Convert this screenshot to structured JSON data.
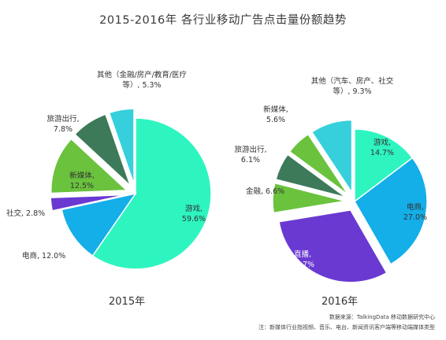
{
  "title": "2015-2016年 各行业移动广告点击量份额趋势",
  "notes": {
    "source": "数据来源：TalkingData 移动数据研究中心",
    "remark": "注：新媒体行业指视频、音乐、电台、新闻资讯客户端等移动端媒体类型"
  },
  "colors": {
    "游戏": "#2ef5c0",
    "电商": "#14aee8",
    "社交": "#6a39d2",
    "新媒体": "#6ac23d",
    "旅游出行": "#3d7a5a",
    "其他": "#35d0dc",
    "金融": "#6ac23d",
    "直播": "#6a39d2"
  },
  "chart_data": [
    {
      "type": "pie",
      "title": "2015年",
      "slices": [
        {
          "category": "游戏",
          "value": 59.6,
          "label_lines": [
            "游戏,",
            "59.6%"
          ],
          "exploded": false
        },
        {
          "category": "电商",
          "value": 12.0,
          "label_lines": [
            "电商, 12.0%"
          ],
          "exploded": false
        },
        {
          "category": "社交",
          "value": 2.8,
          "label_lines": [
            "社交, 2.8%"
          ],
          "exploded": true
        },
        {
          "category": "新媒体",
          "value": 12.5,
          "label_lines": [
            "新媒体,",
            "12.5%"
          ],
          "exploded": true
        },
        {
          "category": "旅游出行",
          "value": 7.8,
          "label_lines": [
            "旅游出行,",
            "7.8%"
          ],
          "exploded": true
        },
        {
          "category": "其他",
          "value": 5.3,
          "label_lines": [
            "其他（金融/房产/教育/医疗",
            "等）, 5.3%"
          ],
          "exploded": true
        }
      ]
    },
    {
      "type": "pie",
      "title": "2016年",
      "slices": [
        {
          "category": "游戏",
          "value": 14.7,
          "label_lines": [
            "游戏,",
            "14.7%"
          ],
          "exploded": false
        },
        {
          "category": "电商",
          "value": 27.0,
          "label_lines": [
            "电商,",
            "27.0%"
          ],
          "exploded": false
        },
        {
          "category": "直播",
          "value": 30.7,
          "label_lines": [
            "直播,",
            "30.7%"
          ],
          "exploded": true
        },
        {
          "category": "金融",
          "value": 6.6,
          "label_lines": [
            "金融, 6.6%"
          ],
          "exploded": true
        },
        {
          "category": "旅游出行",
          "value": 6.1,
          "label_lines": [
            "旅游出行,",
            "6.1%"
          ],
          "exploded": true
        },
        {
          "category": "新媒体",
          "value": 5.6,
          "label_lines": [
            "新媒体,",
            "5.6%"
          ],
          "exploded": true
        },
        {
          "category": "其他",
          "value": 9.3,
          "label_lines": [
            "其他（汽车、房产、社交",
            "等）, 9.3%"
          ],
          "exploded": true
        }
      ]
    }
  ]
}
